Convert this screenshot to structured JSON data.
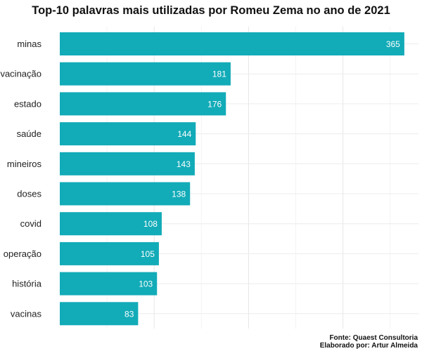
{
  "chart_data": {
    "type": "bar",
    "orientation": "horizontal",
    "title": "Top-10 palavras mais utilizadas por Romeu Zema no ano de 2021",
    "categories": [
      "minas",
      "vacinação",
      "estado",
      "saúde",
      "mineiros",
      "doses",
      "covid",
      "operação",
      "história",
      "vacinas"
    ],
    "values": [
      365,
      181,
      176,
      144,
      143,
      138,
      108,
      105,
      103,
      83
    ],
    "xlabel": "",
    "ylabel": "",
    "xlim": [
      0,
      380
    ],
    "grid": true,
    "x_tick_labels_visible": false,
    "bar_color": "#12ABB8",
    "value_label_color": "#ffffff",
    "value_label_position": "inside-end"
  },
  "captions": {
    "source": "Fonte: Quaest Consultoria",
    "author": "Elaborado por: Artur Almeida"
  }
}
